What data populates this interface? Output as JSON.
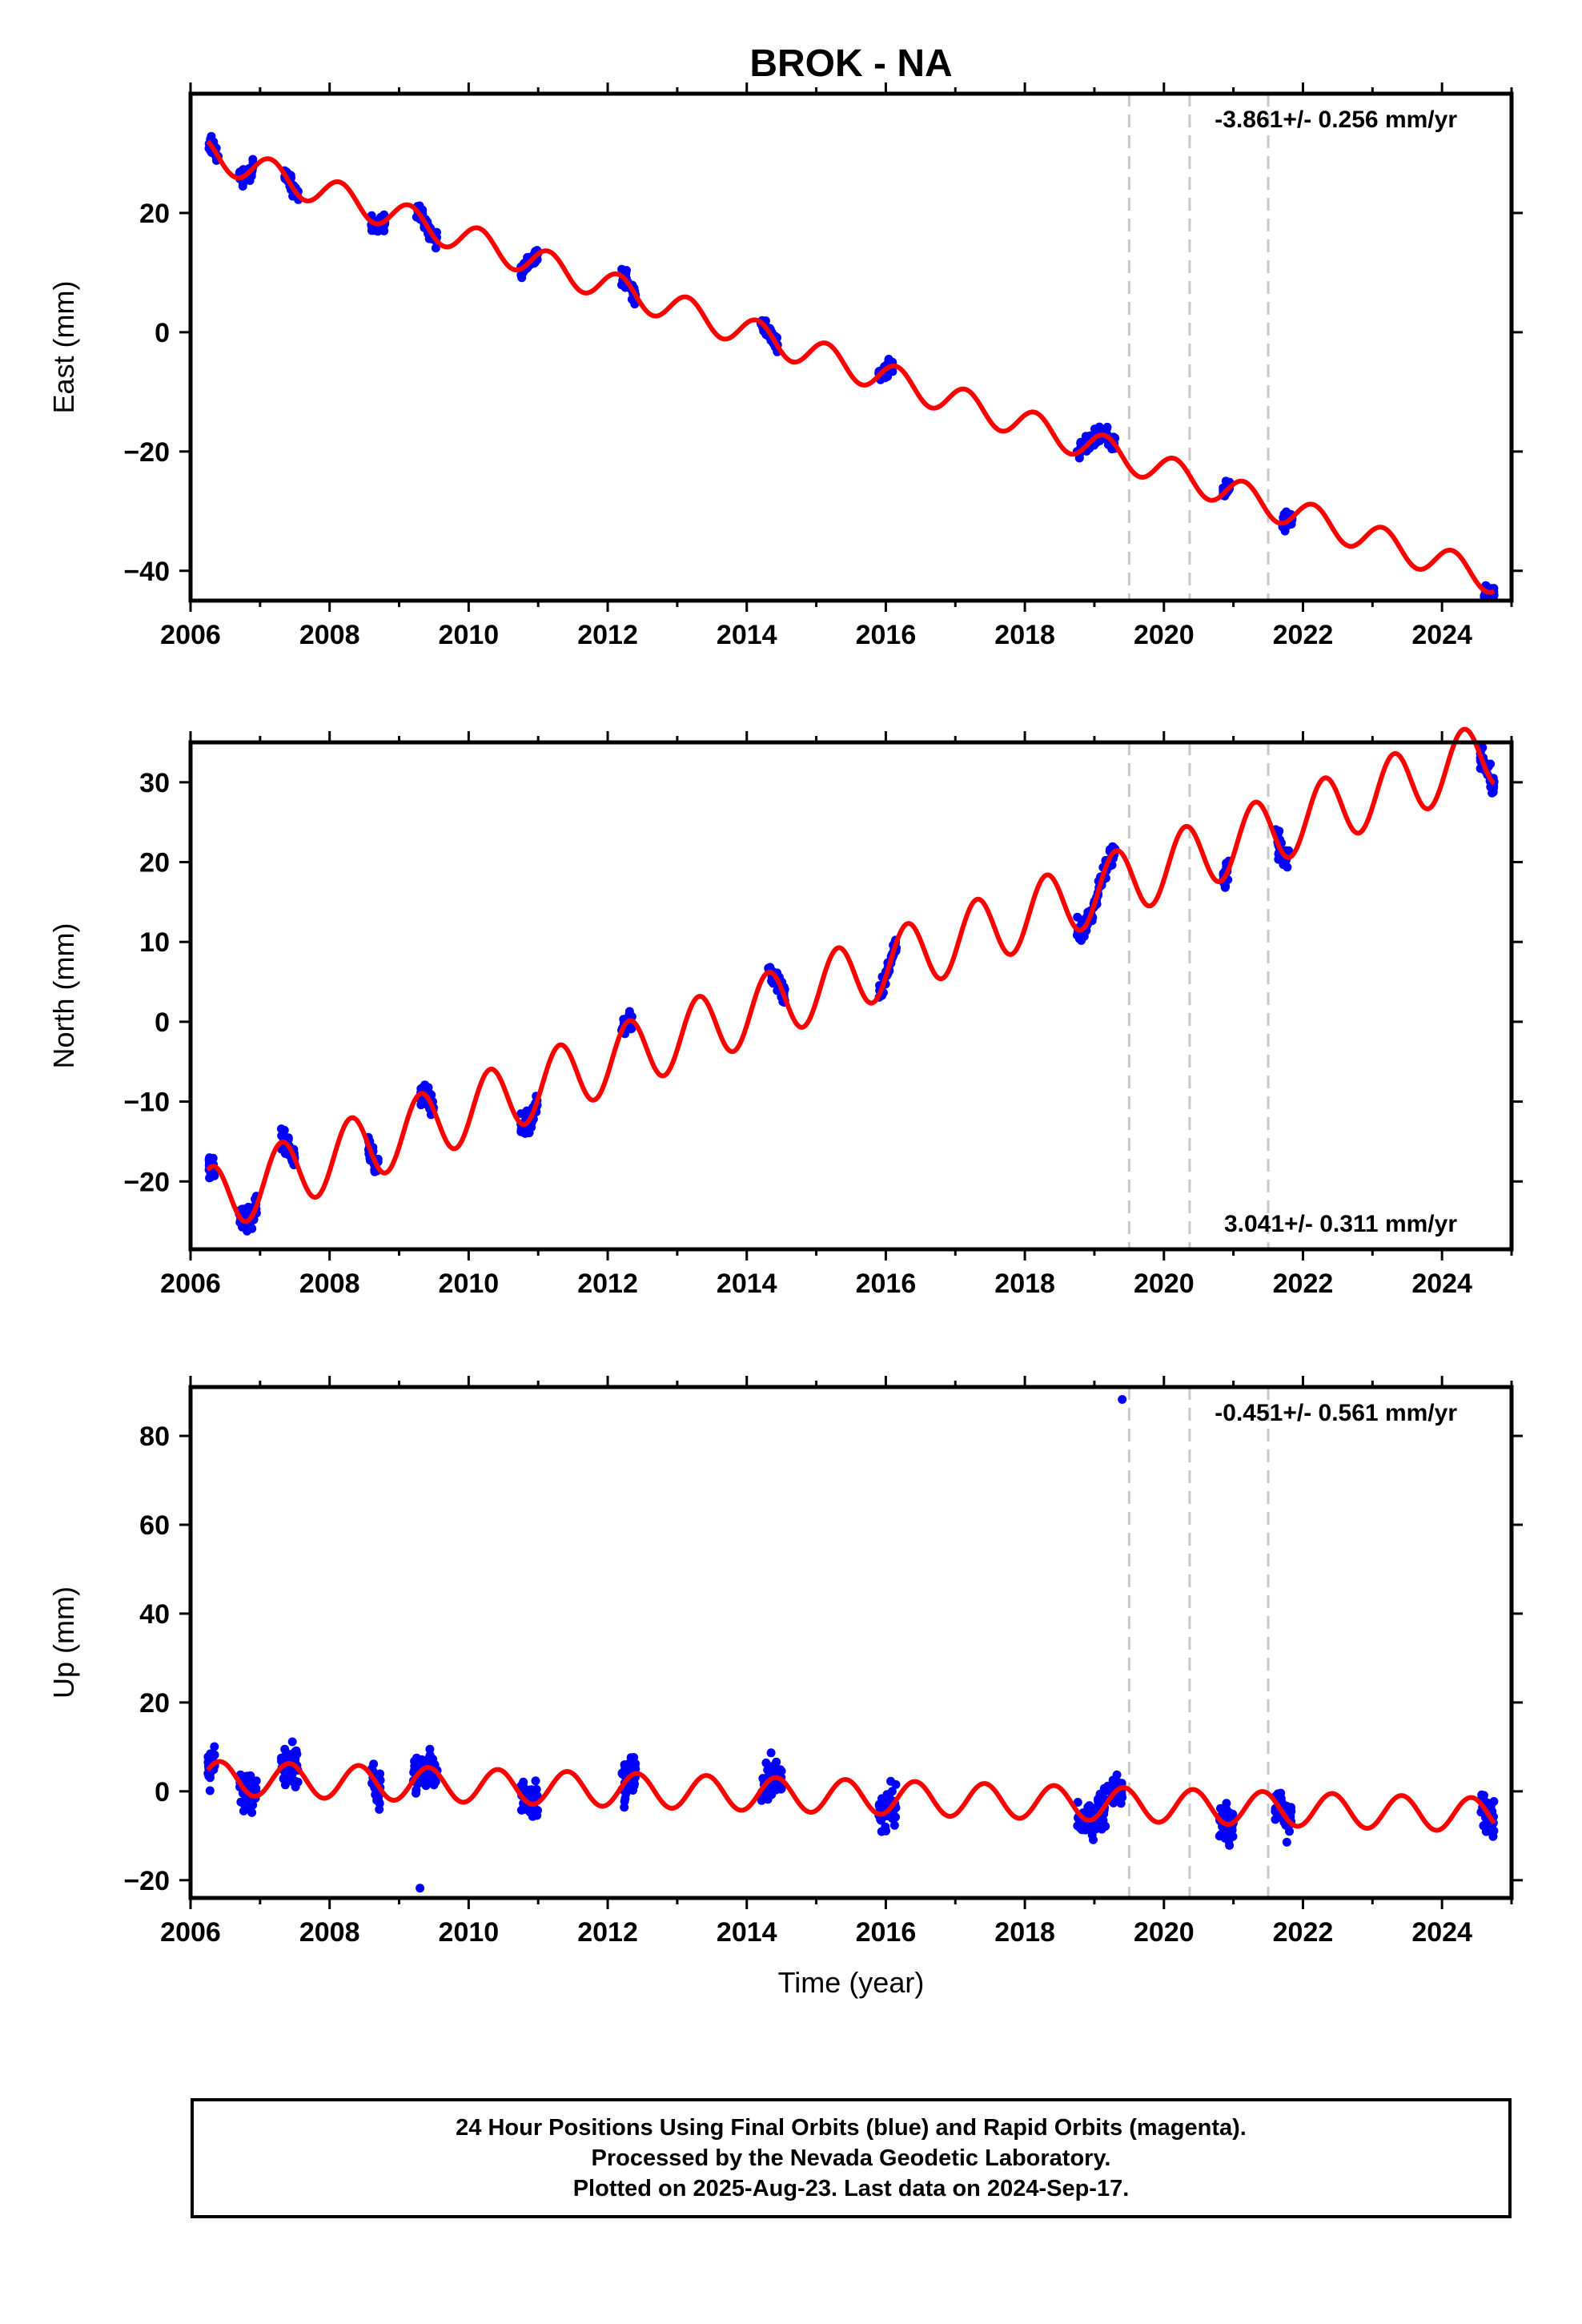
{
  "title": "BROK - NA",
  "colors": {
    "data": "#0000ff",
    "model": "#ff0000",
    "steps": "#c8c8c8"
  },
  "chart_data": [
    {
      "type": "scatter",
      "component": "east",
      "ylabel": "East (mm)",
      "xlim": [
        2006,
        2025
      ],
      "ylim": [
        -45,
        40
      ],
      "xticks": [
        "2006",
        "2008",
        "2010",
        "2012",
        "2014",
        "2016",
        "2018",
        "2020",
        "2022",
        "2024"
      ],
      "yticks": [
        "20",
        "0",
        "−20",
        "−40"
      ],
      "rate_label": "-3.861+/- 0.256 mm/yr",
      "rate_position": "top-right",
      "model": {
        "rate": -3.861,
        "amp": 2.5,
        "phase": 2.2,
        "ref": 2006.25,
        "offset": 30.0
      },
      "steps": [
        2019.5,
        2020.37,
        2021.5
      ],
      "clusters": [
        [
          2006.25,
          2006.4
        ],
        [
          2006.7,
          2006.9
        ],
        [
          2007.35,
          2007.55
        ],
        [
          2008.6,
          2008.8
        ],
        [
          2009.25,
          2009.55
        ],
        [
          2010.75,
          2011.0
        ],
        [
          2012.2,
          2012.4
        ],
        [
          2014.2,
          2014.45
        ],
        [
          2015.9,
          2016.1
        ],
        [
          2018.75,
          2019.3
        ],
        [
          2020.85,
          2020.95
        ],
        [
          2021.7,
          2021.85
        ],
        [
          2024.6,
          2024.75
        ]
      ]
    },
    {
      "type": "scatter",
      "component": "north",
      "ylabel": "North (mm)",
      "xlim": [
        2006,
        2025
      ],
      "ylim": [
        -28.5,
        35
      ],
      "xticks": [
        "2006",
        "2008",
        "2010",
        "2012",
        "2014",
        "2016",
        "2018",
        "2020",
        "2022",
        "2024"
      ],
      "yticks": [
        "30",
        "20",
        "10",
        "0",
        "−10",
        "−20"
      ],
      "rate_label": "3.041+/- 0.311 mm/yr",
      "rate_position": "bottom-right",
      "model": {
        "rate": 3.041,
        "amp": 4.2,
        "phase": 1.2,
        "ref": 2006.25,
        "offset": -22.5
      },
      "steps": [
        2019.5,
        2020.37,
        2021.5
      ],
      "clusters": [
        [
          2006.25,
          2006.35
        ],
        [
          2006.7,
          2006.95
        ],
        [
          2007.3,
          2007.5
        ],
        [
          2008.55,
          2008.7
        ],
        [
          2009.3,
          2009.5
        ],
        [
          2010.75,
          2011.0
        ],
        [
          2012.2,
          2012.35
        ],
        [
          2014.3,
          2014.55
        ],
        [
          2015.9,
          2016.15
        ],
        [
          2018.75,
          2019.3
        ],
        [
          2020.85,
          2020.95
        ],
        [
          2021.6,
          2021.8
        ],
        [
          2024.55,
          2024.75
        ]
      ]
    },
    {
      "type": "scatter",
      "component": "up",
      "ylabel": "Up (mm)",
      "xlabel": "Time (year)",
      "xlim": [
        2006,
        2025
      ],
      "ylim": [
        -24,
        91
      ],
      "xticks": [
        "2006",
        "2008",
        "2010",
        "2012",
        "2014",
        "2016",
        "2018",
        "2020",
        "2022",
        "2024"
      ],
      "yticks": [
        "80",
        "60",
        "40",
        "20",
        "0",
        "−20"
      ],
      "rate_label": "-0.451+/- 0.561 mm/yr",
      "rate_position": "top-right",
      "model": {
        "rate": -0.451,
        "amp": 3.8,
        "phase": 0.5,
        "ref": 2006.25,
        "offset": 3.0
      },
      "steps": [
        2019.5,
        2020.37,
        2021.5
      ],
      "outliers": [
        [
          2019.4,
          88.2
        ],
        [
          2009.3,
          -21.8
        ]
      ],
      "clusters": [
        [
          2006.25,
          2006.35
        ],
        [
          2006.7,
          2006.95
        ],
        [
          2007.3,
          2007.55
        ],
        [
          2008.6,
          2008.75
        ],
        [
          2009.2,
          2009.55
        ],
        [
          2010.75,
          2011.0
        ],
        [
          2012.2,
          2012.4
        ],
        [
          2014.2,
          2014.5
        ],
        [
          2015.9,
          2016.15
        ],
        [
          2018.75,
          2019.4
        ],
        [
          2020.8,
          2021.0
        ],
        [
          2021.6,
          2021.85
        ],
        [
          2024.55,
          2024.75
        ]
      ]
    }
  ],
  "footer": {
    "line1": "24 Hour Positions Using Final Orbits (blue) and Rapid Orbits (magenta).",
    "line2": "Processed by the Nevada Geodetic Laboratory.",
    "line3": "Plotted on 2025-Aug-23. Last data on 2024-Sep-17."
  }
}
